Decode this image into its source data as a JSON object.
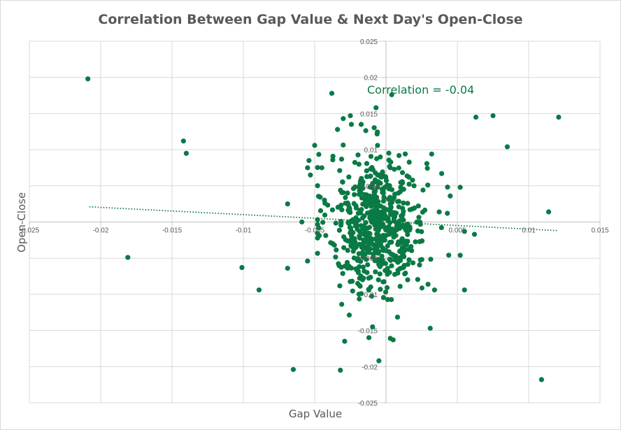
{
  "chart_data": {
    "type": "scatter",
    "title": "Correlation Between Gap Value & Next Day's Open-Close",
    "xlabel": "Gap Value",
    "ylabel": "Open-Close",
    "xlim": [
      -0.025,
      0.015
    ],
    "ylim": [
      -0.025,
      0.025
    ],
    "x_ticks": [
      -0.025,
      -0.02,
      -0.015,
      -0.01,
      -0.005,
      0,
      0.005,
      0.01,
      0.015
    ],
    "x_tick_labels": [
      "-0.025",
      "-0.02",
      "-0.015",
      "-0.01",
      "-0.005",
      "",
      "0.005",
      "0.01",
      "0.015"
    ],
    "y_ticks": [
      -0.025,
      -0.02,
      -0.015,
      -0.01,
      -0.005,
      0,
      0.005,
      0.01,
      0.015,
      0.02,
      0.025
    ],
    "y_tick_labels": [
      "-0.025",
      "-0.02",
      "-0.015",
      "-0.01",
      "-0.005",
      "",
      "0.005",
      "0.01",
      "0.015",
      "0.02",
      "0.025"
    ],
    "grid": true,
    "marker_color": "#0a7a45",
    "annotation": "Correlation = -0.04",
    "trendline": {
      "style": "dotted",
      "color": "#0a7a45",
      "x": [
        -0.0208,
        0.0121
      ],
      "y": [
        0.0021,
        -0.0012
      ]
    },
    "outliers": [
      [
        -0.0209,
        0.0198
      ],
      [
        -0.0181,
        -0.0049
      ],
      [
        -0.0142,
        0.0112
      ],
      [
        -0.014,
        0.0095
      ],
      [
        -0.0101,
        -0.0063
      ],
      [
        -0.0089,
        -0.0094
      ],
      [
        -0.0069,
        -0.0064
      ],
      [
        -0.0069,
        0.0025
      ],
      [
        -0.0065,
        -0.0204
      ],
      [
        -0.0032,
        -0.0205
      ],
      [
        -0.0029,
        -0.0165
      ],
      [
        -0.0059,
        0.0
      ],
      [
        -0.0055,
        -0.0054
      ],
      [
        -0.005,
        0.0106
      ],
      [
        -0.0005,
        -0.0192
      ],
      [
        -0.0012,
        -0.016
      ],
      [
        0.0003,
        -0.0161
      ],
      [
        0.0005,
        -0.0163
      ],
      [
        0.0004,
        0.0176
      ],
      [
        -0.0038,
        0.0178
      ],
      [
        -0.0007,
        0.0158
      ],
      [
        0.0063,
        0.0145
      ],
      [
        0.0075,
        0.0147
      ],
      [
        0.0085,
        0.0104
      ],
      [
        0.0121,
        0.0145
      ],
      [
        0.0114,
        0.0014
      ],
      [
        0.0109,
        -0.0218
      ],
      [
        0.0052,
        -0.0046
      ],
      [
        0.0055,
        -0.0094
      ],
      [
        0.0052,
        0.0048
      ],
      [
        0.0031,
        -0.0147
      ],
      [
        0.0034,
        -0.0094
      ],
      [
        0.0055,
        -0.0013
      ],
      [
        0.0062,
        -0.0017
      ],
      [
        0.0039,
        0.0067
      ],
      [
        0.0032,
        0.0094
      ],
      [
        0.0043,
        0.0012
      ],
      [
        -0.0034,
        0.0128
      ],
      [
        -0.0025,
        0.0147
      ],
      [
        -0.003,
        0.0143
      ],
      [
        -0.0054,
        0.0085
      ],
      [
        -0.0055,
        0.0075
      ],
      [
        -0.0045,
        0.0075
      ],
      [
        -0.0053,
        0.0065
      ]
    ],
    "cluster": {
      "count": 600,
      "x_mean": -0.0006,
      "x_sd": 0.0017,
      "x_range": [
        -0.0048,
        0.0045
      ],
      "y_mean": -0.0002,
      "y_sd": 0.0049,
      "y_range": [
        -0.0145,
        0.0135
      ]
    }
  }
}
